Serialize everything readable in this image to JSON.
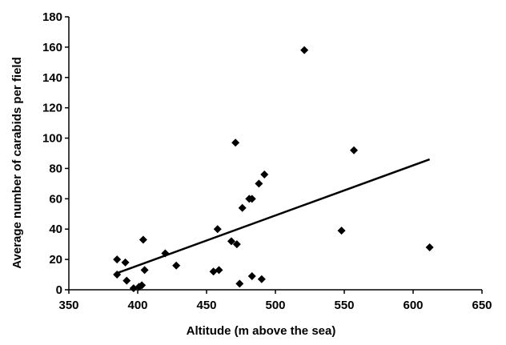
{
  "chart_data": {
    "type": "scatter",
    "title": "",
    "xlabel": "Altitude (m above the sea)",
    "ylabel": "Average number of carabids per field",
    "xlim": [
      350,
      650
    ],
    "ylim": [
      0,
      180
    ],
    "x_ticks": [
      350,
      400,
      450,
      500,
      550,
      600,
      650
    ],
    "y_ticks": [
      0,
      20,
      40,
      60,
      80,
      100,
      120,
      140,
      160,
      180
    ],
    "grid": false,
    "legend": "none",
    "marker": "diamond",
    "marker_color": "#000000",
    "series": [
      {
        "points": [
          {
            "x": 385,
            "y": 20
          },
          {
            "x": 385,
            "y": 10
          },
          {
            "x": 391,
            "y": 18
          },
          {
            "x": 392,
            "y": 6
          },
          {
            "x": 397,
            "y": 1
          },
          {
            "x": 401,
            "y": 2
          },
          {
            "x": 403,
            "y": 3
          },
          {
            "x": 404,
            "y": 33
          },
          {
            "x": 405,
            "y": 13
          },
          {
            "x": 420,
            "y": 24
          },
          {
            "x": 428,
            "y": 16
          },
          {
            "x": 455,
            "y": 12
          },
          {
            "x": 458,
            "y": 40
          },
          {
            "x": 459,
            "y": 13
          },
          {
            "x": 468,
            "y": 32
          },
          {
            "x": 471,
            "y": 97
          },
          {
            "x": 472,
            "y": 30
          },
          {
            "x": 474,
            "y": 4
          },
          {
            "x": 476,
            "y": 54
          },
          {
            "x": 481,
            "y": 60
          },
          {
            "x": 483,
            "y": 60
          },
          {
            "x": 483,
            "y": 9
          },
          {
            "x": 488,
            "y": 70
          },
          {
            "x": 490,
            "y": 7
          },
          {
            "x": 492,
            "y": 76
          },
          {
            "x": 521,
            "y": 158
          },
          {
            "x": 548,
            "y": 39
          },
          {
            "x": 557,
            "y": 92
          },
          {
            "x": 612,
            "y": 28
          }
        ]
      }
    ],
    "trendline": {
      "type": "linear",
      "x": [
        385,
        612
      ],
      "y": [
        11,
        86
      ]
    }
  }
}
